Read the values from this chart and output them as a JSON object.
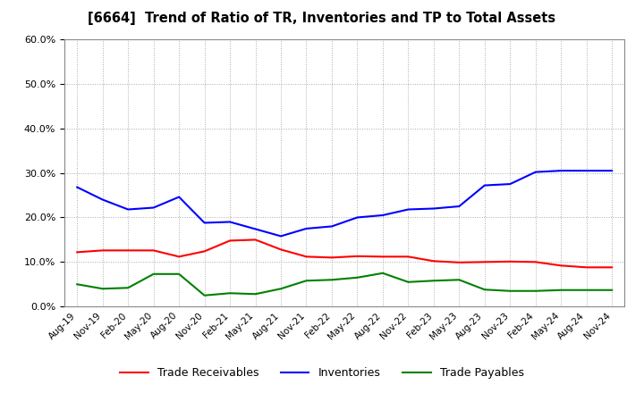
{
  "title": "[6664]  Trend of Ratio of TR, Inventories and TP to Total Assets",
  "x_labels": [
    "Aug-19",
    "Nov-19",
    "Feb-20",
    "May-20",
    "Aug-20",
    "Nov-20",
    "Feb-21",
    "May-21",
    "Aug-21",
    "Nov-21",
    "Feb-22",
    "May-22",
    "Aug-22",
    "Nov-22",
    "Feb-23",
    "May-23",
    "Aug-23",
    "Nov-23",
    "Feb-24",
    "May-24",
    "Aug-24",
    "Nov-24"
  ],
  "trade_receivables": [
    0.122,
    0.126,
    0.126,
    0.126,
    0.112,
    0.124,
    0.148,
    0.15,
    0.128,
    0.112,
    0.11,
    0.113,
    0.112,
    0.112,
    0.102,
    0.099,
    0.1,
    0.101,
    0.1,
    0.092,
    0.088,
    0.088
  ],
  "inventories": [
    0.268,
    0.24,
    0.218,
    0.222,
    0.246,
    0.188,
    0.19,
    0.174,
    0.158,
    0.175,
    0.18,
    0.2,
    0.205,
    0.218,
    0.22,
    0.225,
    0.272,
    0.275,
    0.302,
    0.305,
    0.305,
    0.305
  ],
  "trade_payables": [
    0.05,
    0.04,
    0.042,
    0.073,
    0.073,
    0.025,
    0.03,
    0.028,
    0.04,
    0.058,
    0.06,
    0.065,
    0.075,
    0.055,
    0.058,
    0.06,
    0.038,
    0.035,
    0.035,
    0.037,
    0.037,
    0.037
  ],
  "ylim": [
    0.0,
    0.6
  ],
  "yticks": [
    0.0,
    0.1,
    0.2,
    0.3,
    0.4,
    0.5,
    0.6
  ],
  "tr_color": "#ff0000",
  "inv_color": "#0000ff",
  "tp_color": "#008000",
  "bg_color": "#ffffff",
  "plot_bg_color": "#ffffff",
  "grid_color": "#aaaaaa",
  "legend_labels": [
    "Trade Receivables",
    "Inventories",
    "Trade Payables"
  ]
}
